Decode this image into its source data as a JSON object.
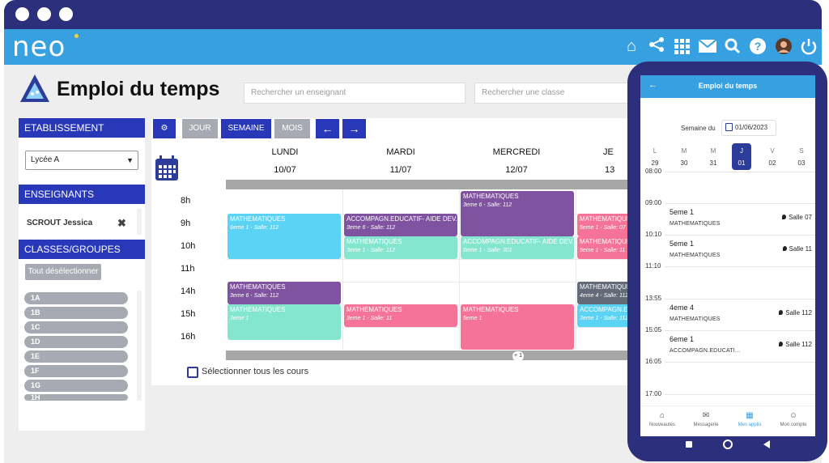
{
  "brand": {
    "logo": "neo"
  },
  "topbar_icons": [
    "home-icon",
    "share-icon",
    "grid-icon",
    "mail-icon",
    "search-icon",
    "help-icon",
    "avatar",
    "power-icon"
  ],
  "page": {
    "title": "Emploi du temps",
    "search_teacher_placeholder": "Rechercher un enseignant",
    "search_class_placeholder": "Rechercher une classe"
  },
  "left": {
    "etablissement_label": "ETABLISSEMENT",
    "etablissement_value": "Lycée A",
    "enseignants_label": "ENSEIGNANTS",
    "teacher": "SCROUT Jessica",
    "classes_label": "CLASSES/GROUPES",
    "deselect_label": "Tout désélectionner",
    "classes": [
      "1A",
      "1B",
      "1C",
      "1D",
      "1E",
      "1F",
      "1G",
      "1H"
    ]
  },
  "toolbar": {
    "jour": "JOUR",
    "semaine": "SEMAINE",
    "mois": "MOIS",
    "prev": "←",
    "next": "→"
  },
  "days": [
    {
      "name": "LUNDI",
      "date": "10/07"
    },
    {
      "name": "MARDI",
      "date": "11/07"
    },
    {
      "name": "MERCREDI",
      "date": "12/07"
    },
    {
      "name": "JE",
      "date": "13"
    }
  ],
  "hours": [
    "8h",
    "9h",
    "10h",
    "11h",
    "14h",
    "15h",
    "16h"
  ],
  "events": [
    {
      "title": "MATHEMATIQUES",
      "sub": "6eme 1 - Salle: 112"
    },
    {
      "title": "ACCOMPAGN.EDUCATIF- AIDE DEV...",
      "sub": "3eme 6 - Salle: 112"
    },
    {
      "title": "MATHEMATIQUES",
      "sub": "3eme 1 - Salle: 112"
    },
    {
      "title": "MATHEMATIQUES",
      "sub": "3eme 6 - Salle: 112"
    },
    {
      "title": "ACCOMPAGN.EDUCATIF- AIDE DEV...",
      "sub": "6eme 1 - Salle: 301"
    },
    {
      "title": "MATHEMATIQUES",
      "sub": "5eme 1 - Salle: 07"
    },
    {
      "title": "MATHEMATIQUES",
      "sub": "5eme 1 - Salle: 11"
    },
    {
      "title": "MATHEMATIQUES",
      "sub": "3eme 6 - Salle: 112"
    },
    {
      "title": "MATHEMATIQUES",
      "sub": "3eme 1"
    },
    {
      "title": "MATHEMATIQUES",
      "sub": "3eme 1 - Salle: 11"
    },
    {
      "title": "MATHEMATIQUES",
      "sub": "5eme 1"
    },
    {
      "title": "MATHEMATIQUES",
      "sub": "4eme 4 - Salle: 112"
    },
    {
      "title": "ACCOMPAGN.ED...",
      "sub": "3eme 1 - Salle: 112"
    }
  ],
  "more_badge": "+ 1",
  "select_all": "Sélectionner tous les cours",
  "colors": {
    "blue": "#5bd3f5",
    "purple": "#7f539f",
    "teal": "#84e6cf",
    "pink": "#f47396",
    "dark": "#636b78",
    "nav": "#2838b8"
  },
  "phone": {
    "title": "Emploi du temps",
    "week_label": "Semaine du",
    "week_date": "01/06/2023",
    "weekdays": [
      {
        "l": "L",
        "n": "29"
      },
      {
        "l": "M",
        "n": "30"
      },
      {
        "l": "M",
        "n": "31"
      },
      {
        "l": "J",
        "n": "01"
      },
      {
        "l": "V",
        "n": "02"
      },
      {
        "l": "S",
        "n": "03"
      }
    ],
    "times": [
      "08:00",
      "09:00",
      "10:10",
      "11:10",
      "13:55",
      "15:05",
      "16:05",
      "17:00"
    ],
    "cards": [
      {
        "klass": "5eme 1",
        "subject": "MATHEMATIQUES",
        "room": "Salle 07"
      },
      {
        "klass": "5eme 1",
        "subject": "MATHEMATIQUES",
        "room": "Salle 11"
      },
      {
        "klass": "4eme 4",
        "subject": "MATHEMATIQUES",
        "room": "Salle 112"
      },
      {
        "klass": "6eme 1",
        "subject": "ACCOMPAGN.EDUCATI...",
        "room": "Salle 112"
      }
    ],
    "nav": [
      "Nouveautés",
      "Messagerie",
      "Mes applis",
      "Mon compte"
    ]
  }
}
